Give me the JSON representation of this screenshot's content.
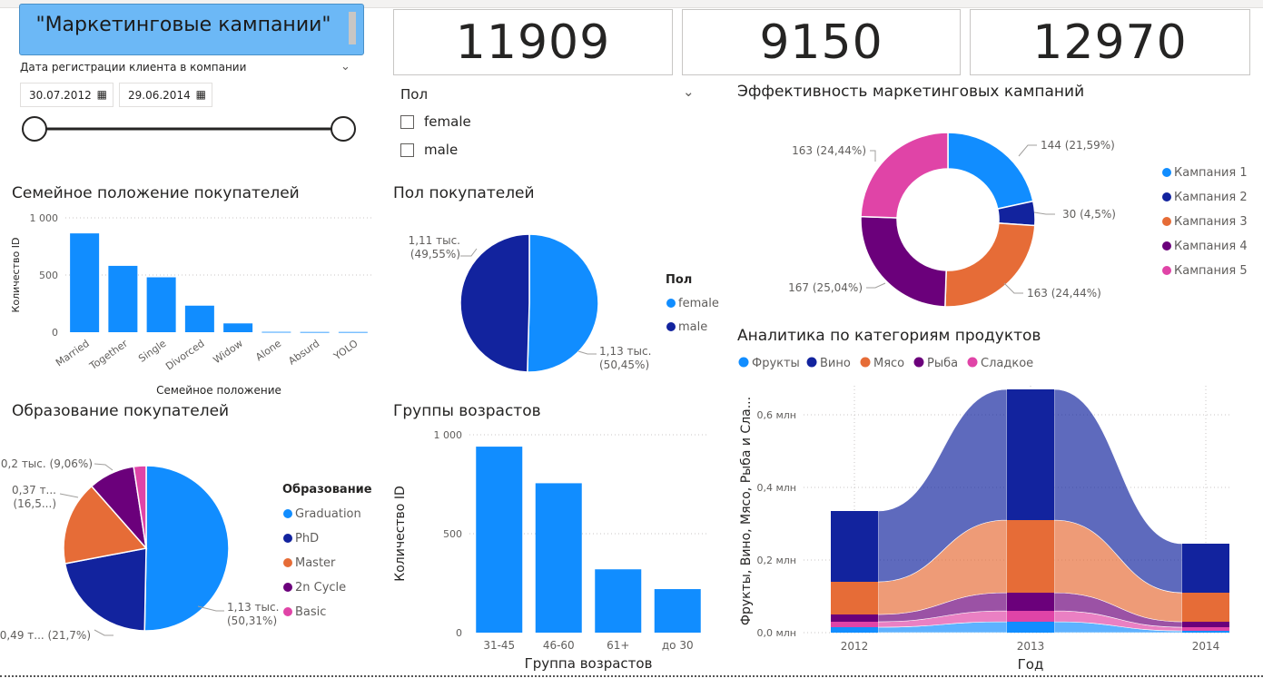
{
  "header": {
    "title": "\"Маркетинговые кампании\""
  },
  "date_slicer": {
    "label": "Дата регистрации клиента в компании",
    "start": "30.07.2012",
    "end": "29.06.2014",
    "calendar_icon": "calendar-icon"
  },
  "kpis": [
    "11909",
    "9150",
    "12970"
  ],
  "gender_slicer": {
    "label": "Пол",
    "options": [
      "female",
      "male"
    ]
  },
  "colors": {
    "blue": "#118dff",
    "navy": "#12239e",
    "orange": "#e66c37",
    "purple": "#6b007b",
    "pink": "#e044a7",
    "grid": "#c8c6c4",
    "axis_text": "#605e5c"
  },
  "charts": {
    "marital": {
      "title": "Семейное положение покупателей",
      "xlabel": "Семейное положение",
      "ylabel": "Количество ID"
    },
    "gender": {
      "title": "Пол покупателей",
      "legend_title": "Пол"
    },
    "campaigns": {
      "title": "Эффективность маркетинговых кампаний"
    },
    "products": {
      "title": "Аналитика по категориям продуктов",
      "xlabel": "Год",
      "ylabel": "Фрукты, Вино, Мясо, Рыба и Сла..."
    },
    "education": {
      "title": "Образование покупателей",
      "legend_title": "Образование"
    },
    "age": {
      "title": "Группы возрастов",
      "xlabel": "Группа возрастов",
      "ylabel": "Количество ID"
    }
  },
  "chart_data": [
    {
      "id": "marital",
      "type": "bar",
      "title": "Семейное положение покупателей",
      "xlabel": "Семейное положение",
      "ylabel": "Количество ID",
      "categories": [
        "Married",
        "Together",
        "Single",
        "Divorced",
        "Widow",
        "Alone",
        "Absurd",
        "YOLO"
      ],
      "values": [
        864,
        580,
        480,
        232,
        77,
        3,
        2,
        2
      ],
      "ylim": [
        0,
        1000
      ],
      "yticks": [
        {
          "v": 0,
          "label": "0"
        },
        {
          "v": 500,
          "label": "500"
        },
        {
          "v": 1000,
          "label": "1 000"
        }
      ],
      "grid": true
    },
    {
      "id": "gender",
      "type": "pie",
      "title": "Пол покупателей",
      "legend_title": "Пол",
      "slices": [
        {
          "name": "female",
          "value": 50.45,
          "label": "1,13 тыс. (50,45%)",
          "color": "#118dff"
        },
        {
          "name": "male",
          "value": 49.55,
          "label": "1,11 тыс. (49,55%)",
          "color": "#12239e"
        }
      ]
    },
    {
      "id": "campaigns",
      "type": "pie",
      "donut": true,
      "title": "Эффективность маркетинговых кампаний",
      "slices": [
        {
          "name": "Кампания 1",
          "value": 144,
          "label": "144 (21,59%)",
          "color": "#118dff"
        },
        {
          "name": "Кампания 2",
          "value": 30,
          "label": "30 (4,5%)",
          "color": "#12239e"
        },
        {
          "name": "Кампания 3",
          "value": 163,
          "label": "163 (24,44%)",
          "color": "#e66c37"
        },
        {
          "name": "Кампания 4",
          "value": 167,
          "label": "167 (25,04%)",
          "color": "#6b007b"
        },
        {
          "name": "Кампания 5",
          "value": 163,
          "label": "163 (24,44%)",
          "color": "#e044a7"
        }
      ],
      "legend": "right"
    },
    {
      "id": "education",
      "type": "pie",
      "title": "Образование покупателей",
      "legend_title": "Образование",
      "slices": [
        {
          "name": "Graduation",
          "value": 50.31,
          "label": "1,13 тыс. (50,31%)",
          "color": "#118dff"
        },
        {
          "name": "PhD",
          "value": 21.7,
          "label": "0,49 т... (21,7%)",
          "color": "#12239e"
        },
        {
          "name": "Master",
          "value": 16.5,
          "label": "0,37 т... (16,5...)",
          "color": "#e66c37"
        },
        {
          "name": "2n Cycle",
          "value": 9.06,
          "label": "0,2 тыс. (9,06%)",
          "color": "#6b007b"
        },
        {
          "name": "Basic",
          "value": 2.43,
          "label": "",
          "color": "#e044a7"
        }
      ]
    },
    {
      "id": "age",
      "type": "bar",
      "title": "Группы возрастов",
      "xlabel": "Группа возрастов",
      "ylabel": "Количество ID",
      "categories": [
        "31-45",
        "46-60",
        "61+",
        "до 30"
      ],
      "values": [
        940,
        755,
        320,
        220
      ],
      "ylim": [
        0,
        1000
      ],
      "yticks": [
        {
          "v": 0,
          "label": "0"
        },
        {
          "v": 500,
          "label": "500"
        },
        {
          "v": 1000,
          "label": "1 000"
        }
      ],
      "grid": true
    },
    {
      "id": "products",
      "type": "area",
      "title": "Аналитика по категориям продуктов",
      "xlabel": "Год",
      "ylabel": "Фрукты, Вино, Мясо, Рыба и Сла...",
      "categories": [
        "2012",
        "2013",
        "2014"
      ],
      "series": [
        {
          "name": "Фрукты",
          "color": "#118dff",
          "values": [
            0.015,
            0.03,
            0.005
          ]
        },
        {
          "name": "Вино",
          "color": "#12239e",
          "values": [
            0.195,
            0.36,
            0.135
          ]
        },
        {
          "name": "Мясо",
          "color": "#e66c37",
          "values": [
            0.09,
            0.2,
            0.08
          ]
        },
        {
          "name": "Рыба",
          "color": "#6b007b",
          "values": [
            0.02,
            0.05,
            0.015
          ]
        },
        {
          "name": "Сладкое",
          "color": "#e044a7",
          "values": [
            0.015,
            0.03,
            0.01
          ]
        }
      ],
      "stack_order_bottom_to_top": [
        "Фрукты",
        "Сладкое",
        "Рыба",
        "Мясо",
        "Вино"
      ],
      "ylim": [
        0,
        0.68
      ],
      "yticks": [
        {
          "v": 0,
          "label": "0,0 млн"
        },
        {
          "v": 0.2,
          "label": "0,2 млн"
        },
        {
          "v": 0.4,
          "label": "0,4 млн"
        },
        {
          "v": 0.6,
          "label": "0,6 млн"
        }
      ],
      "legend": "top",
      "grid": true
    }
  ]
}
